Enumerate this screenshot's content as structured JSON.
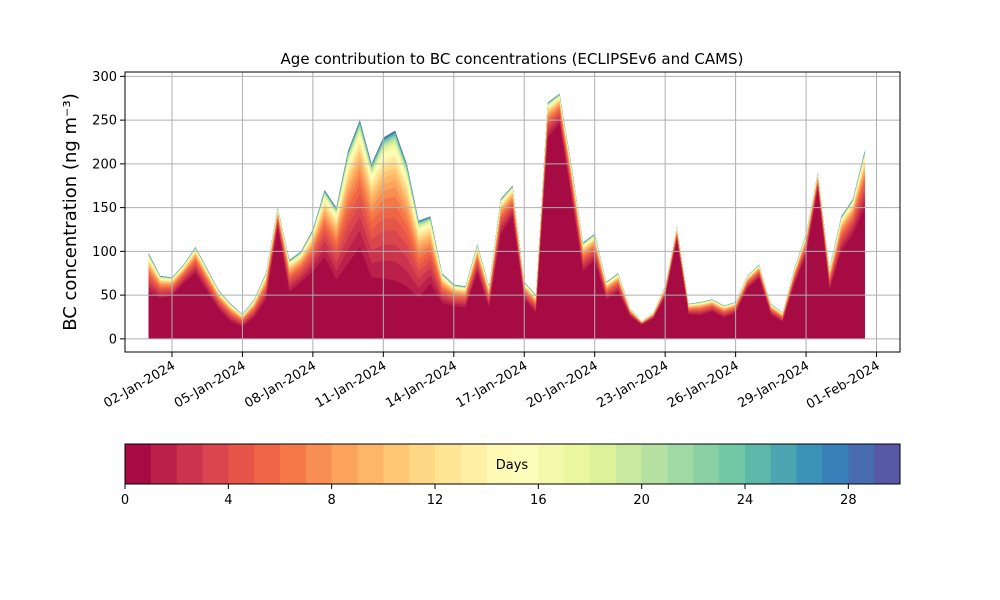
{
  "chart_data": {
    "type": "area",
    "title": "Age contribution to BC concentrations (ECLIPSEv6 and CAMS)",
    "ylabel": "BC concentration (ng m⁻³)",
    "xlabel": "",
    "ylim": [
      -15,
      305
    ],
    "xlim": [
      "2023-12-31",
      "2024-02-02"
    ],
    "grid": true,
    "x_ticks": [
      "02-Jan-2024",
      "05-Jan-2024",
      "08-Jan-2024",
      "11-Jan-2024",
      "14-Jan-2024",
      "17-Jan-2024",
      "20-Jan-2024",
      "23-Jan-2024",
      "26-Jan-2024",
      "29-Jan-2024",
      "01-Feb-2024"
    ],
    "y_ticks": [
      0,
      50,
      100,
      150,
      200,
      250,
      300
    ],
    "x": [
      "2024-01-01",
      "2024-01-01T12:00",
      "2024-01-02",
      "2024-01-02T12:00",
      "2024-01-03",
      "2024-01-03T12:00",
      "2024-01-04",
      "2024-01-04T12:00",
      "2024-01-05",
      "2024-01-05T12:00",
      "2024-01-06",
      "2024-01-06T12:00",
      "2024-01-07",
      "2024-01-07T12:00",
      "2024-01-08",
      "2024-01-08T12:00",
      "2024-01-09",
      "2024-01-09T12:00",
      "2024-01-10",
      "2024-01-10T12:00",
      "2024-01-11",
      "2024-01-11T12:00",
      "2024-01-12",
      "2024-01-12T12:00",
      "2024-01-13",
      "2024-01-13T12:00",
      "2024-01-14",
      "2024-01-14T12:00",
      "2024-01-15",
      "2024-01-15T12:00",
      "2024-01-16",
      "2024-01-16T12:00",
      "2024-01-17",
      "2024-01-17T12:00",
      "2024-01-18",
      "2024-01-18T12:00",
      "2024-01-19",
      "2024-01-19T12:00",
      "2024-01-20",
      "2024-01-20T12:00",
      "2024-01-21",
      "2024-01-21T12:00",
      "2024-01-22",
      "2024-01-22T12:00",
      "2024-01-23",
      "2024-01-23T12:00",
      "2024-01-24",
      "2024-01-24T12:00",
      "2024-01-25",
      "2024-01-25T12:00",
      "2024-01-26",
      "2024-01-26T12:00",
      "2024-01-27",
      "2024-01-27T12:00",
      "2024-01-28",
      "2024-01-28T12:00",
      "2024-01-29",
      "2024-01-29T12:00",
      "2024-01-30",
      "2024-01-30T12:00",
      "2024-01-31",
      "2024-01-31T12:00"
    ],
    "total": [
      98,
      72,
      70,
      85,
      105,
      80,
      55,
      40,
      28,
      45,
      75,
      150,
      90,
      100,
      125,
      170,
      150,
      215,
      250,
      200,
      230,
      238,
      200,
      135,
      140,
      75,
      62,
      60,
      108,
      60,
      160,
      175,
      65,
      50,
      270,
      280,
      200,
      110,
      120,
      65,
      75,
      35,
      20,
      30,
      60,
      128,
      40,
      42,
      45,
      38,
      42,
      72,
      85,
      40,
      30,
      80,
      120,
      190,
      80,
      140,
      160,
      215
    ],
    "young_fraction": [
      0.55,
      0.65,
      0.7,
      0.75,
      0.72,
      0.68,
      0.62,
      0.5,
      0.5,
      0.55,
      0.6,
      0.85,
      0.6,
      0.65,
      0.62,
      0.55,
      0.45,
      0.4,
      0.42,
      0.35,
      0.3,
      0.28,
      0.3,
      0.35,
      0.45,
      0.55,
      0.6,
      0.6,
      0.7,
      0.6,
      0.75,
      0.8,
      0.7,
      0.6,
      0.85,
      0.88,
      0.82,
      0.7,
      0.75,
      0.7,
      0.72,
      0.75,
      0.8,
      0.78,
      0.8,
      0.88,
      0.7,
      0.65,
      0.7,
      0.65,
      0.7,
      0.8,
      0.82,
      0.7,
      0.65,
      0.78,
      0.8,
      0.9,
      0.7,
      0.72,
      0.75,
      0.7
    ],
    "colorbar": {
      "label": "Days",
      "min": 0,
      "max": 30,
      "step": 1,
      "ticks": [
        0,
        4,
        8,
        12,
        16,
        20,
        24,
        28
      ],
      "colormap": [
        "#9e0142",
        "#d53e4f",
        "#f46d43",
        "#fdae61",
        "#fee08b",
        "#ffffbf",
        "#e6f598",
        "#abdda4",
        "#66c2a5",
        "#3288bd",
        "#5e4fa2"
      ]
    }
  }
}
